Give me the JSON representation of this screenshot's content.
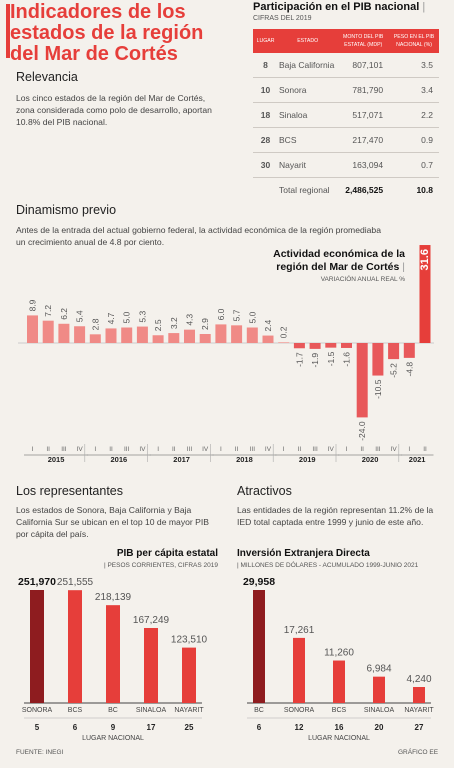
{
  "header": {
    "title": "Indicadores de los estados de la región del Mar de Cortés"
  },
  "relevancia": {
    "heading": "Relevancia",
    "text": "Los cinco estados de la región del Mar de Cortés, zona considerada como polo de desarrollo, aportan 10.8% del PIB nacional."
  },
  "participacion": {
    "title": "Participación en el PIB nacional",
    "subtitle": "CIFRAS DEL 2019",
    "headers": [
      "LUGAR",
      "ESTADO",
      "MONTO DEL PIB ESTATAL (MDP)",
      "PESO EN EL PIB NACIONAL (%)"
    ],
    "rows": [
      {
        "rank": "8",
        "state": "Baja California",
        "amount": "807,101",
        "share": "3.5"
      },
      {
        "rank": "10",
        "state": "Sonora",
        "amount": "781,790",
        "share": "3.4"
      },
      {
        "rank": "18",
        "state": "Sinaloa",
        "amount": "517,071",
        "share": "2.2"
      },
      {
        "rank": "28",
        "state": "BCS",
        "amount": "217,470",
        "share": "0.9"
      },
      {
        "rank": "30",
        "state": "Nayarit",
        "amount": "163,094",
        "share": "0.7"
      }
    ],
    "total_label": "Total regional",
    "total_amount": "2,486,525",
    "total_share": "10.8"
  },
  "dinamismo": {
    "heading": "Dinamismo previo",
    "text": "Antes de la entrada del actual gobierno federal, la actividad económica de la región promediaba un crecimiento anual de 4.8 por ciento."
  },
  "representantes": {
    "heading": "Los representantes",
    "text": "Los estados de Sonora, Baja California y Baja California Sur se ubican en el top 10 de mayor PIB por cápita del país."
  },
  "atractivos": {
    "heading": "Atractivos",
    "text": "Las entidades de la región representan 11.2% de la IED total captada entre 1999 y junio de este año."
  },
  "footer": {
    "source": "FUENTE: INEGI",
    "credit": "GRÁFICO EE"
  },
  "colors": {
    "accent": "#e63e3a",
    "dark": "#8e1c1f",
    "background": "#f4f1ec"
  },
  "chart_data": [
    {
      "type": "bar",
      "title": "Actividad económica de la región del Mar de Cortés",
      "subtitle": "VARIACIÓN ANUAL REAL %",
      "categories": [
        "2015-I",
        "2015-II",
        "2015-III",
        "2015-IV",
        "2016-I",
        "2016-II",
        "2016-III",
        "2016-IV",
        "2017-I",
        "2017-II",
        "2017-III",
        "2017-IV",
        "2018-I",
        "2018-II",
        "2018-III",
        "2018-IV",
        "2019-I",
        "2019-II",
        "2019-III",
        "2019-IV",
        "2020-I",
        "2020-II",
        "2020-III",
        "2020-IV",
        "2021-I",
        "2021-II"
      ],
      "quarter_labels": [
        "I",
        "II",
        "III",
        "IV",
        "I",
        "II",
        "III",
        "IV",
        "I",
        "II",
        "III",
        "IV",
        "I",
        "II",
        "III",
        "IV",
        "I",
        "II",
        "III",
        "IV",
        "I",
        "II",
        "III",
        "IV",
        "I",
        "II"
      ],
      "years": [
        "2015",
        "2016",
        "2017",
        "2018",
        "2019",
        "2020",
        "2021"
      ],
      "values": [
        8.9,
        7.2,
        6.2,
        5.4,
        2.8,
        4.7,
        5.0,
        5.3,
        2.5,
        3.2,
        4.3,
        2.9,
        6.0,
        5.7,
        5.0,
        2.4,
        0.2,
        -1.7,
        -1.9,
        -1.5,
        -1.6,
        -24.0,
        -10.5,
        -5.2,
        -4.8,
        31.6
      ],
      "labels": [
        "8.9",
        "7.2",
        "6.2",
        "5.4",
        "2.8",
        "4.7",
        "5.0",
        "5.3",
        "2.5",
        "3.2",
        "4.3",
        "2.9",
        "6.0",
        "5.7",
        "5.0",
        "2.4",
        "0.2",
        "-1.7",
        "-1.9",
        "-1.5",
        "-1.6",
        "-24.0",
        "-10.5",
        "-5.2",
        "-4.8",
        "31.6"
      ],
      "ylim": [
        -24,
        31.6
      ]
    },
    {
      "type": "bar",
      "title": "PIB per cápita estatal",
      "subtitle": "PESOS CORRIENTES, CIFRAS 2019",
      "categories": [
        "SONORA",
        "BCS",
        "BC",
        "SINALOA",
        "NAYARIT"
      ],
      "values": [
        251970,
        251555,
        218139,
        167249,
        123510
      ],
      "labels": [
        "251,970",
        "251,555",
        "218,139",
        "167,249",
        "123,510"
      ],
      "ranks": [
        "5",
        "6",
        "9",
        "17",
        "25"
      ],
      "rank_label": "LUGAR NACIONAL",
      "highlight_index": 0
    },
    {
      "type": "bar",
      "title": "Inversión Extranjera Directa",
      "subtitle": "MILLONES DE DÓLARES - ACUMULADO 1999-JUNIO 2021",
      "categories": [
        "BC",
        "SONORA",
        "BCS",
        "SINALOA",
        "NAYARIT"
      ],
      "values": [
        29958,
        17261,
        11260,
        6984,
        4240
      ],
      "labels": [
        "29,958",
        "17,261",
        "11,260",
        "6,984",
        "4,240"
      ],
      "ranks": [
        "6",
        "12",
        "16",
        "20",
        "27"
      ],
      "rank_label": "LUGAR NACIONAL",
      "highlight_index": 0
    }
  ]
}
